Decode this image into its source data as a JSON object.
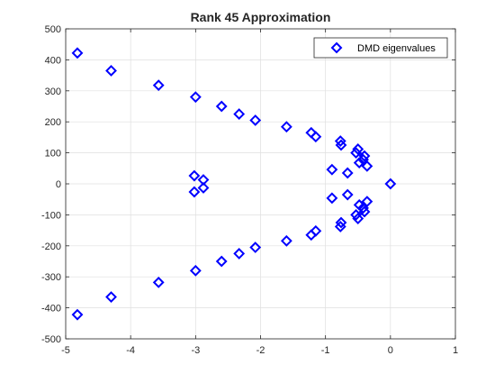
{
  "chart_data": {
    "type": "scatter",
    "title": "Rank 45 Approximation",
    "xlabel": "",
    "ylabel": "",
    "xlim": [
      -5,
      1
    ],
    "ylim": [
      -500,
      500
    ],
    "xticks": [
      -5,
      -4,
      -3,
      -2,
      -1,
      0,
      1
    ],
    "yticks": [
      -500,
      -400,
      -300,
      -200,
      -100,
      0,
      100,
      200,
      300,
      400,
      500
    ],
    "xtick_labels": [
      "-5",
      "-4",
      "-3",
      "-2",
      "-1",
      "0",
      "1"
    ],
    "ytick_labels": [
      "-500",
      "-400",
      "-300",
      "-200",
      "-100",
      "0",
      "100",
      "200",
      "300",
      "400",
      "500"
    ],
    "grid": true,
    "legend": {
      "placement": "top-right",
      "entries": [
        "DMD eigenvalues"
      ]
    },
    "marker": "diamond",
    "series": [
      {
        "name": "DMD eigenvalues",
        "color": "#0000ff",
        "points": [
          [
            -4.82,
            422
          ],
          [
            -4.3,
            365
          ],
          [
            -3.57,
            318
          ],
          [
            -3.0,
            280
          ],
          [
            -2.6,
            250
          ],
          [
            -2.33,
            225
          ],
          [
            -2.08,
            205
          ],
          [
            -1.6,
            184
          ],
          [
            -1.22,
            165
          ],
          [
            -1.15,
            152
          ],
          [
            -0.77,
            138
          ],
          [
            -0.76,
            125
          ],
          [
            -0.5,
            112
          ],
          [
            -0.53,
            100
          ],
          [
            -0.4,
            90
          ],
          [
            -0.42,
            78
          ],
          [
            -0.48,
            68
          ],
          [
            -0.36,
            57
          ],
          [
            -0.9,
            46
          ],
          [
            -0.66,
            35
          ],
          [
            -3.02,
            26
          ],
          [
            -2.88,
            13
          ],
          [
            0.0,
            0
          ],
          [
            -4.82,
            -422
          ],
          [
            -4.3,
            -365
          ],
          [
            -3.57,
            -318
          ],
          [
            -3.0,
            -280
          ],
          [
            -2.6,
            -250
          ],
          [
            -2.33,
            -225
          ],
          [
            -2.08,
            -205
          ],
          [
            -1.6,
            -184
          ],
          [
            -1.22,
            -165
          ],
          [
            -1.15,
            -152
          ],
          [
            -0.77,
            -138
          ],
          [
            -0.76,
            -125
          ],
          [
            -0.5,
            -112
          ],
          [
            -0.53,
            -100
          ],
          [
            -0.4,
            -90
          ],
          [
            -0.42,
            -78
          ],
          [
            -0.48,
            -68
          ],
          [
            -0.36,
            -57
          ],
          [
            -0.9,
            -46
          ],
          [
            -0.66,
            -35
          ],
          [
            -3.02,
            -26
          ],
          [
            -2.88,
            -13
          ]
        ]
      }
    ]
  }
}
